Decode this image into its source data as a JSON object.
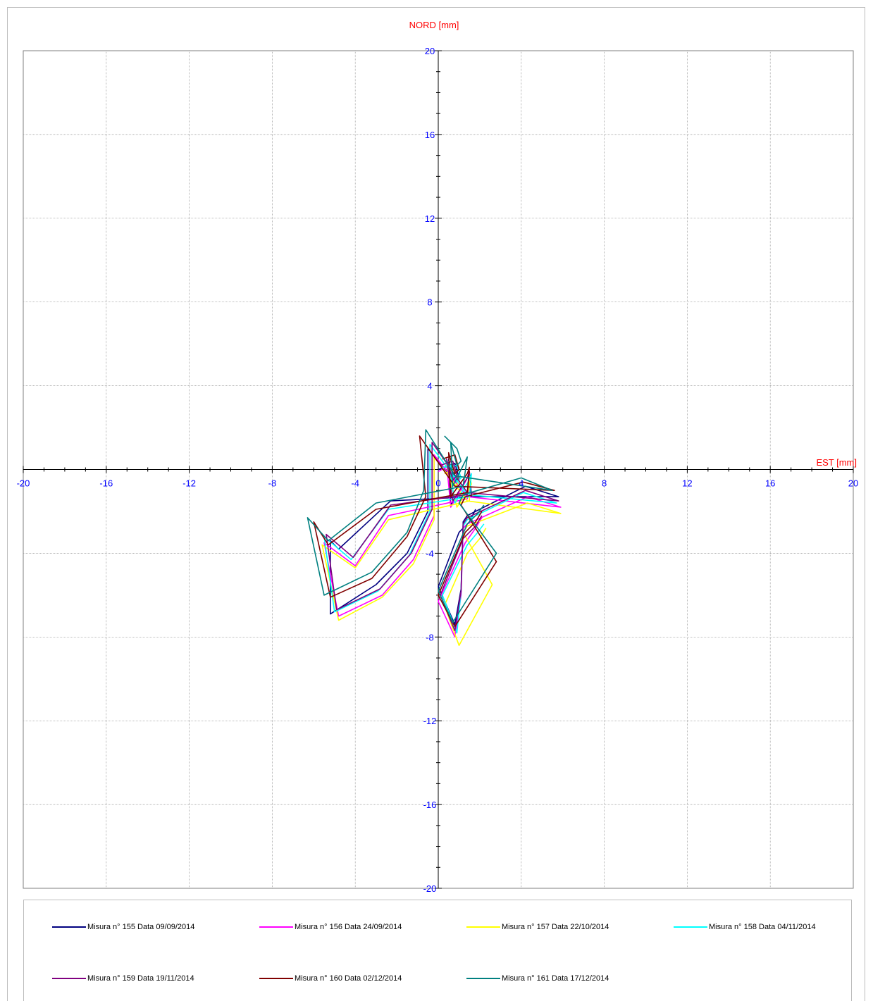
{
  "chart_data": {
    "type": "line",
    "ylabel": "NORD  [mm]",
    "xlabel": "EST [mm]",
    "xlim": [
      -20,
      20
    ],
    "ylim": [
      -20,
      20
    ],
    "grid": true,
    "x_ticks": [
      "-20",
      "-16",
      "-12",
      "-8",
      "-4",
      "0",
      "4",
      "8",
      "12",
      "16",
      "20"
    ],
    "y_ticks": [
      "20",
      "16",
      "12",
      "8",
      "4",
      "0",
      "-4",
      "-8",
      "-12",
      "-16",
      "-20"
    ],
    "legend_placement": "bottom",
    "series": [
      {
        "name": "Misura n° 155 Data 09/09/2014",
        "color": "#000080",
        "points": [
          [
            0.0,
            0.0
          ],
          [
            0.8,
            0.3
          ],
          [
            1.0,
            -0.4
          ],
          [
            0.8,
            -0.6
          ],
          [
            0.5,
            0.5
          ],
          [
            0.6,
            -1.7
          ],
          [
            1.4,
            -0.4
          ],
          [
            1.5,
            -0.1
          ],
          [
            1.6,
            -1.3
          ],
          [
            -2.3,
            -1.5
          ],
          [
            -4.8,
            -3.8
          ],
          [
            -5.2,
            -3.4
          ],
          [
            -5.2,
            -6.9
          ],
          [
            -3.0,
            -5.5
          ],
          [
            -1.5,
            -4.0
          ],
          [
            -0.5,
            -2.0
          ],
          [
            -0.5,
            1.0
          ],
          [
            1.4,
            -1.3
          ],
          [
            5.8,
            -1.3
          ],
          [
            4.2,
            -0.8
          ],
          [
            1.4,
            -2.2
          ],
          [
            1.2,
            -2.5
          ],
          [
            1.1,
            -5.7
          ],
          [
            0.8,
            -7.4
          ],
          [
            0.0,
            -5.6
          ],
          [
            1.0,
            -3.0
          ],
          [
            1.5,
            -2.5
          ],
          [
            1.8,
            -1.9
          ]
        ]
      },
      {
        "name": "Misura n° 156 Data 24/09/2014",
        "color": "#ff00ff",
        "points": [
          [
            0.0,
            -0.1
          ],
          [
            0.5,
            0.2
          ],
          [
            0.8,
            -0.5
          ],
          [
            0.6,
            -0.7
          ],
          [
            0.4,
            0.3
          ],
          [
            0.6,
            -1.8
          ],
          [
            1.3,
            -0.6
          ],
          [
            1.5,
            -0.2
          ],
          [
            1.4,
            -1.4
          ],
          [
            -2.4,
            -2.2
          ],
          [
            -4.0,
            -4.6
          ],
          [
            -5.5,
            -3.5
          ],
          [
            -4.8,
            -7.0
          ],
          [
            -2.7,
            -6.0
          ],
          [
            -1.2,
            -4.3
          ],
          [
            -0.2,
            -2.2
          ],
          [
            -0.2,
            0.7
          ],
          [
            1.4,
            -1.3
          ],
          [
            5.9,
            -1.8
          ],
          [
            4.3,
            -1.3
          ],
          [
            1.4,
            -2.6
          ],
          [
            1.2,
            -2.8
          ],
          [
            1.1,
            -6.0
          ],
          [
            0.8,
            -8.0
          ],
          [
            0.0,
            -6.3
          ],
          [
            1.3,
            -3.5
          ],
          [
            1.8,
            -2.8
          ],
          [
            2.1,
            -2.3
          ]
        ]
      },
      {
        "name": "Misura n° 157 Data 22/10/2014",
        "color": "#ffff00",
        "points": [
          [
            0.3,
            -0.2
          ],
          [
            0.8,
            0.0
          ],
          [
            1.0,
            -0.6
          ],
          [
            0.8,
            -0.8
          ],
          [
            0.4,
            0.2
          ],
          [
            0.9,
            -1.8
          ],
          [
            1.6,
            -0.7
          ],
          [
            1.5,
            -0.3
          ],
          [
            1.5,
            -1.5
          ],
          [
            -2.4,
            -2.4
          ],
          [
            -4.0,
            -4.7
          ],
          [
            -5.6,
            -3.6
          ],
          [
            -4.8,
            -7.2
          ],
          [
            -2.7,
            -6.1
          ],
          [
            -1.2,
            -4.5
          ],
          [
            -0.2,
            -2.4
          ],
          [
            -0.2,
            0.6
          ],
          [
            1.4,
            -1.5
          ],
          [
            5.9,
            -2.1
          ],
          [
            4.3,
            -1.6
          ],
          [
            1.4,
            -2.7
          ],
          [
            1.2,
            -3.0
          ],
          [
            2.6,
            -5.5
          ],
          [
            1.0,
            -8.4
          ],
          [
            0.3,
            -6.5
          ],
          [
            1.4,
            -4.0
          ],
          [
            2.0,
            -3.3
          ],
          [
            2.3,
            -2.8
          ]
        ]
      },
      {
        "name": "Misura n° 158 Data 04/11/2014",
        "color": "#00ffff",
        "points": [
          [
            0.2,
            0.1
          ],
          [
            0.9,
            0.2
          ],
          [
            1.1,
            -0.4
          ],
          [
            0.9,
            -0.6
          ],
          [
            0.5,
            0.4
          ],
          [
            0.8,
            -1.6
          ],
          [
            1.5,
            -0.5
          ],
          [
            1.6,
            -0.2
          ],
          [
            1.5,
            -1.3
          ],
          [
            -2.4,
            -1.9
          ],
          [
            -4.2,
            -4.3
          ],
          [
            -5.5,
            -3.2
          ],
          [
            -5.0,
            -6.8
          ],
          [
            -2.9,
            -5.8
          ],
          [
            -1.4,
            -4.1
          ],
          [
            -0.4,
            -2.0
          ],
          [
            -0.4,
            1.2
          ],
          [
            1.4,
            -1.2
          ],
          [
            5.7,
            -1.6
          ],
          [
            4.1,
            -1.1
          ],
          [
            1.4,
            -2.4
          ],
          [
            1.2,
            -2.7
          ],
          [
            1.1,
            -5.8
          ],
          [
            0.9,
            -7.8
          ],
          [
            0.2,
            -6.0
          ],
          [
            1.4,
            -3.6
          ],
          [
            1.9,
            -3.0
          ],
          [
            2.2,
            -2.6
          ]
        ]
      },
      {
        "name": "Misura n° 159 Data 19/11/2014",
        "color": "#800080",
        "points": [
          [
            0.1,
            0.2
          ],
          [
            0.7,
            0.4
          ],
          [
            0.9,
            -0.3
          ],
          [
            0.7,
            -0.5
          ],
          [
            0.4,
            0.5
          ],
          [
            0.7,
            -1.5
          ],
          [
            1.4,
            -0.4
          ],
          [
            1.5,
            -0.1
          ],
          [
            1.4,
            -1.2
          ],
          [
            -2.3,
            -1.7
          ],
          [
            -4.1,
            -4.2
          ],
          [
            -5.4,
            -3.1
          ],
          [
            -4.9,
            -6.7
          ],
          [
            -2.8,
            -5.7
          ],
          [
            -1.3,
            -4.0
          ],
          [
            -0.3,
            -1.9
          ],
          [
            -0.3,
            1.3
          ],
          [
            1.4,
            -1.1
          ],
          [
            5.8,
            -1.5
          ],
          [
            4.2,
            -1.0
          ],
          [
            1.4,
            -2.3
          ],
          [
            1.2,
            -2.6
          ],
          [
            1.1,
            -5.8
          ],
          [
            0.8,
            -7.7
          ],
          [
            0.1,
            -6.0
          ],
          [
            1.2,
            -3.3
          ],
          [
            1.8,
            -2.7
          ],
          [
            2.1,
            -2.2
          ]
        ]
      },
      {
        "name": "Misura n° 160 Data 02/12/2014",
        "color": "#800000",
        "points": [
          [
            0.2,
            0.5
          ],
          [
            0.8,
            0.7
          ],
          [
            1.0,
            0.0
          ],
          [
            0.8,
            -0.2
          ],
          [
            0.5,
            0.8
          ],
          [
            0.6,
            -1.3
          ],
          [
            1.4,
            -0.2
          ],
          [
            1.5,
            0.1
          ],
          [
            1.4,
            -1.1
          ],
          [
            -3.0,
            -1.9
          ],
          [
            -5.3,
            -3.6
          ],
          [
            -6.0,
            -2.5
          ],
          [
            -5.2,
            -6.1
          ],
          [
            -3.2,
            -5.2
          ],
          [
            -1.5,
            -3.2
          ],
          [
            -0.6,
            -1.3
          ],
          [
            -0.9,
            1.6
          ],
          [
            0.8,
            -0.8
          ],
          [
            5.6,
            -1.0
          ],
          [
            4.1,
            -0.6
          ],
          [
            1.3,
            -1.3
          ],
          [
            1.1,
            -1.7
          ],
          [
            2.8,
            -4.4
          ],
          [
            0.8,
            -7.5
          ],
          [
            0.0,
            -6.0
          ],
          [
            1.3,
            -3.0
          ],
          [
            1.8,
            -2.5
          ],
          [
            2.1,
            -2.0
          ]
        ]
      },
      {
        "name": "Misura n° 161 Data 17/12/2014",
        "color": "#008080",
        "points": [
          [
            0.3,
            1.6
          ],
          [
            0.9,
            1.0
          ],
          [
            1.1,
            0.4
          ],
          [
            0.9,
            0.2
          ],
          [
            0.6,
            1.3
          ],
          [
            0.7,
            -0.8
          ],
          [
            1.2,
            0.2
          ],
          [
            1.4,
            0.6
          ],
          [
            1.2,
            -0.8
          ],
          [
            -3.0,
            -1.6
          ],
          [
            -5.3,
            -3.4
          ],
          [
            -6.3,
            -2.3
          ],
          [
            -5.5,
            -6.0
          ],
          [
            -3.2,
            -4.9
          ],
          [
            -1.5,
            -3.0
          ],
          [
            -0.7,
            -1.0
          ],
          [
            -0.6,
            1.9
          ],
          [
            0.8,
            -0.3
          ],
          [
            5.5,
            -1.0
          ],
          [
            4.0,
            -0.4
          ],
          [
            1.2,
            -1.2
          ],
          [
            1.0,
            -1.6
          ],
          [
            2.8,
            -4.0
          ],
          [
            0.7,
            -7.3
          ],
          [
            0.0,
            -5.8
          ],
          [
            1.4,
            -2.6
          ],
          [
            1.9,
            -2.1
          ],
          [
            2.2,
            -1.7
          ]
        ]
      }
    ]
  }
}
